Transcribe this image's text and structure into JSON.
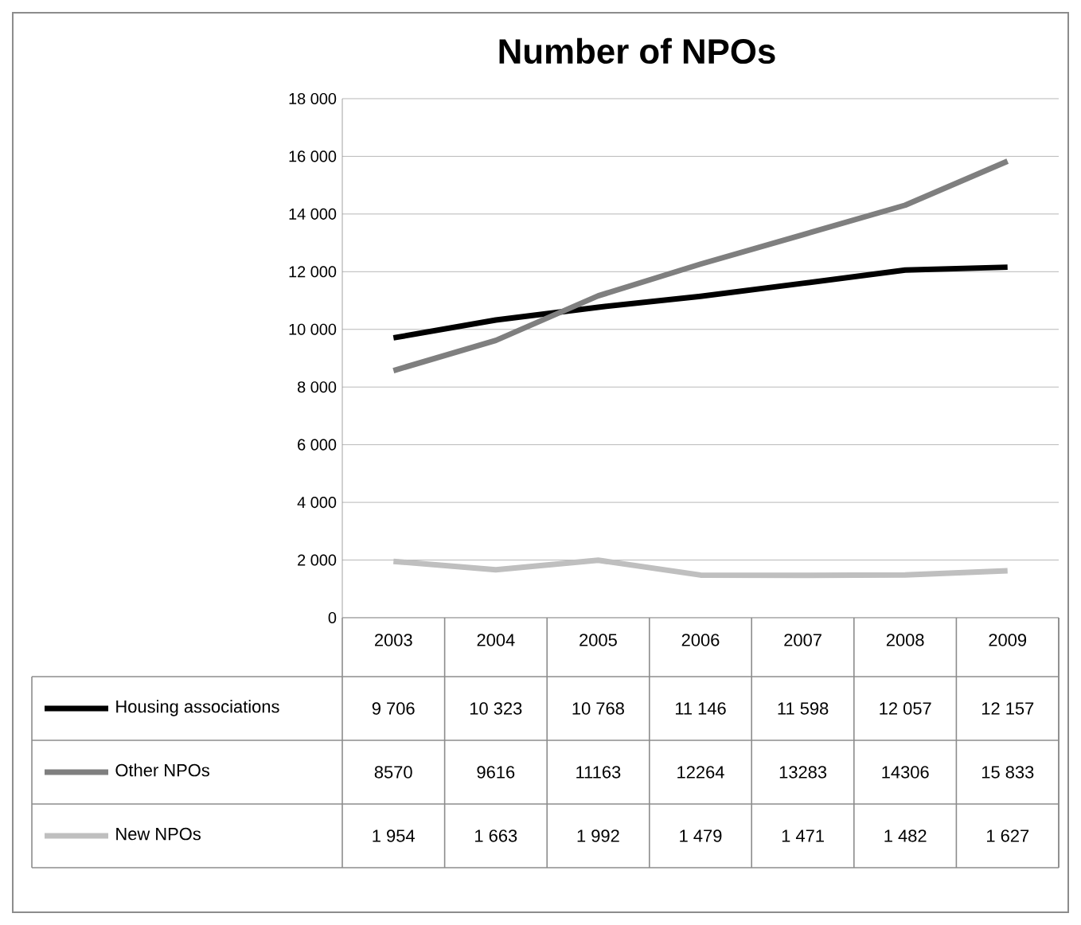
{
  "chart_data": {
    "type": "line",
    "title": "Number of NPOs",
    "categories": [
      "2003",
      "2004",
      "2005",
      "2006",
      "2007",
      "2008",
      "2009"
    ],
    "series": [
      {
        "name": "Housing associations",
        "color": "#000000",
        "values": [
          9706,
          10323,
          10768,
          11146,
          11598,
          12057,
          12157
        ],
        "value_labels": [
          "9 706",
          "10 323",
          "10 768",
          "11 146",
          "11 598",
          "12 057",
          "12 157"
        ]
      },
      {
        "name": "Other NPOs",
        "color": "#7f7f7f",
        "values": [
          8570,
          9616,
          11163,
          12264,
          13283,
          14306,
          15833
        ],
        "value_labels": [
          "8570",
          "9616",
          "11163",
          "12264",
          "13283",
          "14306",
          "15 833"
        ]
      },
      {
        "name": "New NPOs",
        "color": "#bfbfbf",
        "values": [
          1954,
          1663,
          1992,
          1479,
          1471,
          1482,
          1627
        ],
        "value_labels": [
          "1 954",
          "1 663",
          "1 992",
          "1 479",
          "1 471",
          "1 482",
          "1 627"
        ]
      }
    ],
    "ylim": [
      0,
      18000
    ],
    "yticks": [
      0,
      {
        "value": 2000,
        "label": "2 000"
      },
      {
        "value": 4000,
        "label": "4 000"
      },
      {
        "value": 6000,
        "label": "6 000"
      },
      {
        "value": 8000,
        "label": "8 000"
      },
      {
        "value": 10000,
        "label": "10 000"
      },
      {
        "value": 12000,
        "label": "12 000"
      },
      {
        "value": 14000,
        "label": "14 000"
      },
      {
        "value": 16000,
        "label": "16 000"
      },
      {
        "value": 18000,
        "label": "18 000"
      }
    ],
    "grid": "y",
    "legend": "bottom",
    "marker": "none",
    "line_style": "solid"
  }
}
